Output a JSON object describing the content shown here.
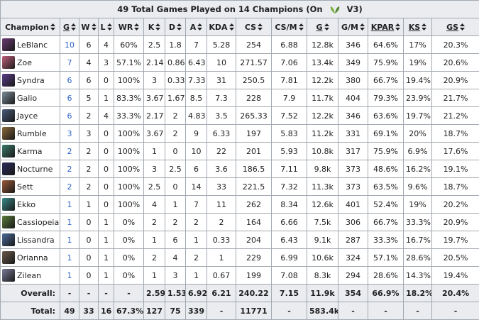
{
  "title": {
    "prefix": "49 Total Games Played on 14 Champions (On",
    "suffix": "V3)",
    "patch_icon": "leaf-icon"
  },
  "columns": [
    "Champion",
    "G",
    "W",
    "L",
    "WR",
    "K",
    "D",
    "A",
    "KDA",
    "CS",
    "CS/M",
    "G",
    "G/M",
    "KPAR",
    "KS",
    "GS"
  ],
  "rows": [
    {
      "champion": "LeBlanc",
      "icon_color": "#6b3a73",
      "g": "10",
      "w": "6",
      "l": "4",
      "wr": "60%",
      "k": "2.5",
      "d": "1.8",
      "a": "7",
      "kda": "5.28",
      "cs": "254",
      "csm": "6.88",
      "gold": "12.8k",
      "gm": "346",
      "kpar": "64.6%",
      "ks": "17%",
      "gs": "20.3%"
    },
    {
      "champion": "Zoe",
      "icon_color": "#c0607a",
      "g": "7",
      "w": "4",
      "l": "3",
      "wr": "57.1%",
      "k": "2.14",
      "d": "0.86",
      "a": "6.43",
      "kda": "10",
      "cs": "271.57",
      "csm": "7.06",
      "gold": "13.4k",
      "gm": "349",
      "kpar": "75.9%",
      "ks": "19%",
      "gs": "20.6%"
    },
    {
      "champion": "Syndra",
      "icon_color": "#5b3b8a",
      "g": "6",
      "w": "6",
      "l": "0",
      "wr": "100%",
      "k": "3",
      "d": "0.33",
      "a": "7.33",
      "kda": "31",
      "cs": "250.5",
      "csm": "7.81",
      "gold": "12.2k",
      "gm": "380",
      "kpar": "66.7%",
      "ks": "19.4%",
      "gs": "20.9%"
    },
    {
      "champion": "Galio",
      "icon_color": "#7d8e99",
      "g": "6",
      "w": "5",
      "l": "1",
      "wr": "83.3%",
      "k": "3.67",
      "d": "1.67",
      "a": "8.5",
      "kda": "7.3",
      "cs": "228",
      "csm": "7.9",
      "gold": "11.7k",
      "gm": "404",
      "kpar": "79.3%",
      "ks": "23.9%",
      "gs": "21.7%"
    },
    {
      "champion": "Jayce",
      "icon_color": "#4a5a7a",
      "g": "6",
      "w": "2",
      "l": "4",
      "wr": "33.3%",
      "k": "2.17",
      "d": "2",
      "a": "4.83",
      "kda": "3.5",
      "cs": "265.33",
      "csm": "7.52",
      "gold": "12.2k",
      "gm": "346",
      "kpar": "63.6%",
      "ks": "19.7%",
      "gs": "21.2%"
    },
    {
      "champion": "Rumble",
      "icon_color": "#8a6a3a",
      "g": "3",
      "w": "3",
      "l": "0",
      "wr": "100%",
      "k": "3.67",
      "d": "2",
      "a": "9",
      "kda": "6.33",
      "cs": "197",
      "csm": "5.83",
      "gold": "11.2k",
      "gm": "331",
      "kpar": "69.1%",
      "ks": "20%",
      "gs": "18.7%"
    },
    {
      "champion": "Karma",
      "icon_color": "#3a7a6a",
      "g": "2",
      "w": "2",
      "l": "0",
      "wr": "100%",
      "k": "1",
      "d": "0",
      "a": "10",
      "kda": "22",
      "cs": "201",
      "csm": "5.93",
      "gold": "10.8k",
      "gm": "317",
      "kpar": "75.9%",
      "ks": "6.9%",
      "gs": "17.6%"
    },
    {
      "champion": "Nocturne",
      "icon_color": "#2a2a5a",
      "g": "2",
      "w": "2",
      "l": "0",
      "wr": "100%",
      "k": "3",
      "d": "2.5",
      "a": "6",
      "kda": "3.6",
      "cs": "186.5",
      "csm": "7.11",
      "gold": "9.8k",
      "gm": "373",
      "kpar": "48.6%",
      "ks": "16.2%",
      "gs": "19.1%"
    },
    {
      "champion": "Sett",
      "icon_color": "#9a5a3a",
      "g": "2",
      "w": "2",
      "l": "0",
      "wr": "100%",
      "k": "2.5",
      "d": "0",
      "a": "14",
      "kda": "33",
      "cs": "221.5",
      "csm": "7.32",
      "gold": "11.3k",
      "gm": "373",
      "kpar": "63.5%",
      "ks": "9.6%",
      "gs": "18.7%"
    },
    {
      "champion": "Ekko",
      "icon_color": "#3a8a8a",
      "g": "1",
      "w": "1",
      "l": "0",
      "wr": "100%",
      "k": "4",
      "d": "1",
      "a": "7",
      "kda": "11",
      "cs": "262",
      "csm": "8.34",
      "gold": "12.6k",
      "gm": "401",
      "kpar": "52.4%",
      "ks": "19%",
      "gs": "20.2%"
    },
    {
      "champion": "Cassiopeia",
      "icon_color": "#5a7a3a",
      "g": "1",
      "w": "0",
      "l": "1",
      "wr": "0%",
      "k": "2",
      "d": "2",
      "a": "2",
      "kda": "2",
      "cs": "164",
      "csm": "6.66",
      "gold": "7.5k",
      "gm": "306",
      "kpar": "66.7%",
      "ks": "33.3%",
      "gs": "20.9%"
    },
    {
      "champion": "Lissandra",
      "icon_color": "#4a6a9a",
      "g": "1",
      "w": "0",
      "l": "1",
      "wr": "0%",
      "k": "1",
      "d": "6",
      "a": "1",
      "kda": "0.33",
      "cs": "204",
      "csm": "6.43",
      "gold": "9.1k",
      "gm": "287",
      "kpar": "33.3%",
      "ks": "16.7%",
      "gs": "19.7%"
    },
    {
      "champion": "Orianna",
      "icon_color": "#6a5a4a",
      "g": "1",
      "w": "0",
      "l": "1",
      "wr": "0%",
      "k": "2",
      "d": "4",
      "a": "2",
      "kda": "1",
      "cs": "229",
      "csm": "6.99",
      "gold": "10.6k",
      "gm": "324",
      "kpar": "57.1%",
      "ks": "28.6%",
      "gs": "20.5%"
    },
    {
      "champion": "Zilean",
      "icon_color": "#7a7a9a",
      "g": "1",
      "w": "0",
      "l": "1",
      "wr": "0%",
      "k": "1",
      "d": "3",
      "a": "1",
      "kda": "0.67",
      "cs": "199",
      "csm": "7.08",
      "gold": "8.3k",
      "gm": "294",
      "kpar": "28.6%",
      "ks": "14.3%",
      "gs": "19.4%"
    }
  ],
  "overall": {
    "label": "Overall:",
    "g": "-",
    "w": "-",
    "l": "-",
    "wr": "-",
    "k": "2.59",
    "d": "1.53",
    "a": "6.92",
    "kda": "6.21",
    "cs": "240.22",
    "csm": "7.15",
    "gold": "11.9k",
    "gm": "354",
    "kpar": "66.9%",
    "ks": "18.2%",
    "gs": "20.4%"
  },
  "total": {
    "label": "Total:",
    "g": "49",
    "w": "33",
    "l": "16",
    "wr": "67.3%",
    "k": "127",
    "d": "75",
    "a": "339",
    "kda": "-",
    "cs": "11771",
    "csm": "-",
    "gold": "583.4k",
    "gm": "-",
    "kpar": "-",
    "ks": "-",
    "gs": "-"
  }
}
